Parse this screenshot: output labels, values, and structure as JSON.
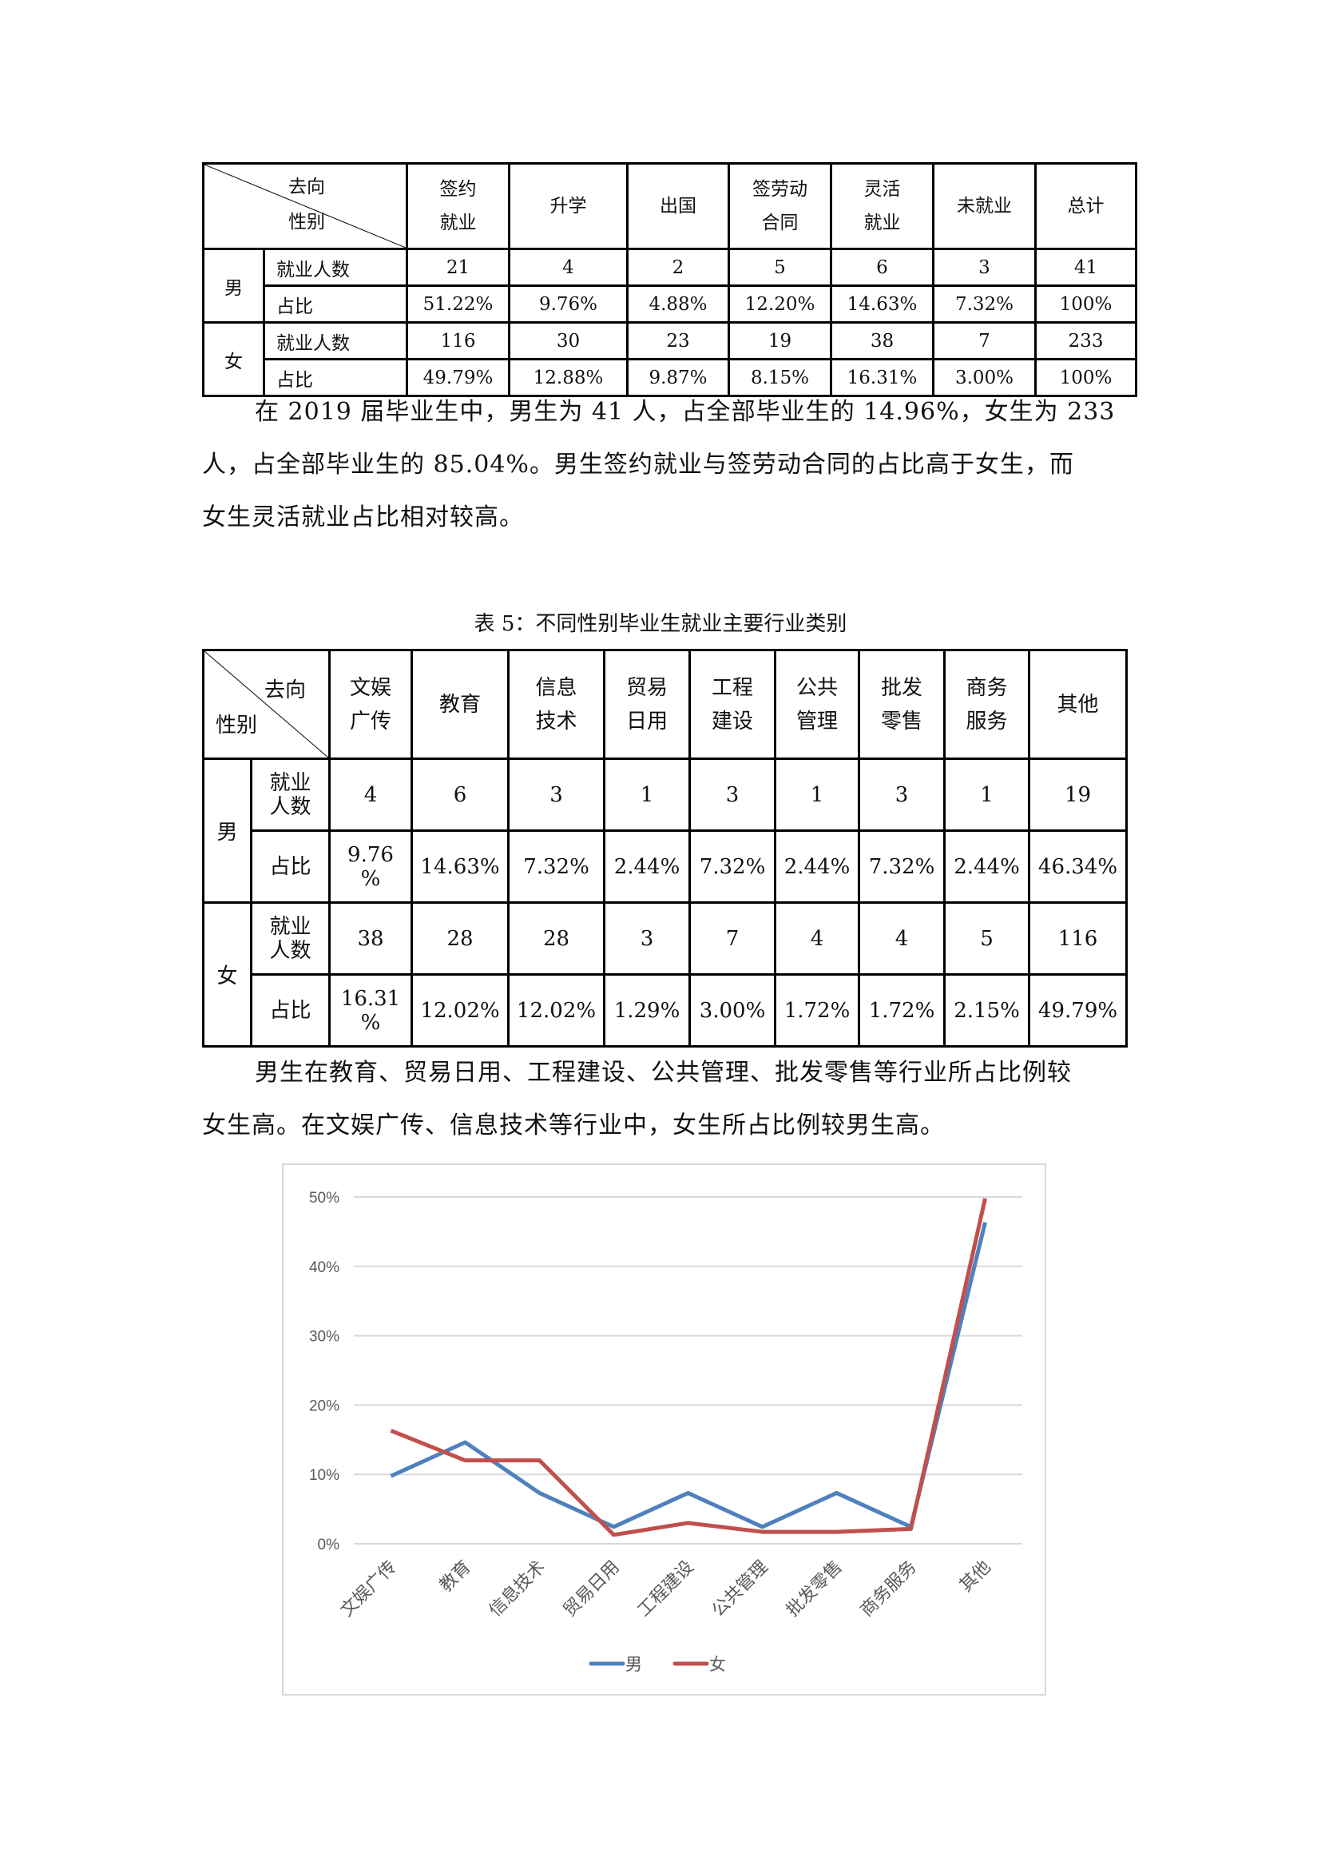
{
  "table1": {
    "corner_top": "去向",
    "corner_bottom": "性别",
    "headers": [
      "签约\n就业",
      "升学",
      "出国",
      "签劳动\n合同",
      "灵活\n就业",
      "未就业",
      "总计"
    ],
    "groups": [
      {
        "gender": "男",
        "rows": [
          {
            "label": "就业人数",
            "values": [
              "21",
              "4",
              "2",
              "5",
              "6",
              "3",
              "41"
            ]
          },
          {
            "label": "占比",
            "values": [
              "51.22%",
              "9.76%",
              "4.88%",
              "12.20%",
              "14.63%",
              "7.32%",
              "100%"
            ]
          }
        ]
      },
      {
        "gender": "女",
        "rows": [
          {
            "label": "就业人数",
            "values": [
              "116",
              "30",
              "23",
              "19",
              "38",
              "7",
              "233"
            ]
          },
          {
            "label": "占比",
            "values": [
              "49.79%",
              "12.88%",
              "9.87%",
              "8.15%",
              "16.31%",
              "3.00%",
              "100%"
            ]
          }
        ]
      }
    ]
  },
  "paragraph1": [
    "在 2019 届毕业生中，男生为 41 人，占全部毕业生的 14.96%，女生为 233",
    "人，占全部毕业生的 85.04%。男生签约就业与签劳动合同的占比高于女生，而",
    "女生灵活就业占比相对较高。"
  ],
  "table2": {
    "caption": "表 5：不同性别毕业生就业主要行业类别",
    "corner_top": "去向",
    "corner_bottom": "性别",
    "headers": [
      "文娱\n广传",
      "教育",
      "信息\n技术",
      "贸易\n日用",
      "工程\n建设",
      "公共\n管理",
      "批发\n零售",
      "商务\n服务",
      "其他"
    ],
    "groups": [
      {
        "gender": "男",
        "rows": [
          {
            "label": "就业\n人数",
            "values": [
              "4",
              "6",
              "3",
              "1",
              "3",
              "1",
              "3",
              "1",
              "19"
            ]
          },
          {
            "label": "占比",
            "values": [
              "9.76\n%",
              "14.63%",
              "7.32%",
              "2.44%",
              "7.32%",
              "2.44%",
              "7.32%",
              "2.44%",
              "46.34%"
            ]
          }
        ]
      },
      {
        "gender": "女",
        "rows": [
          {
            "label": "就业\n人数",
            "values": [
              "38",
              "28",
              "28",
              "3",
              "7",
              "4",
              "4",
              "5",
              "116"
            ]
          },
          {
            "label": "占比",
            "values": [
              "16.31\n%",
              "12.02%",
              "12.02%",
              "1.29%",
              "3.00%",
              "1.72%",
              "1.72%",
              "2.15%",
              "49.79%"
            ]
          }
        ]
      }
    ]
  },
  "paragraph2": [
    "男生在教育、贸易日用、工程建设、公共管理、批发零售等行业所占比例较",
    "女生高。在文娱广传、信息技术等行业中，女生所占比例较男生高。"
  ],
  "chart_data": {
    "type": "line",
    "categories": [
      "文娱广传",
      "教育",
      "信息技术",
      "贸易日用",
      "工程建设",
      "公共管理",
      "批发零售",
      "商务服务",
      "其他"
    ],
    "series": [
      {
        "name": "男",
        "color": "#4f81bd",
        "values": [
          9.76,
          14.63,
          7.32,
          2.44,
          7.32,
          2.44,
          7.32,
          2.44,
          46.34
        ]
      },
      {
        "name": "女",
        "color": "#c0504d",
        "values": [
          16.31,
          12.02,
          12.02,
          1.29,
          3.0,
          1.72,
          1.72,
          2.15,
          49.79
        ]
      }
    ],
    "ylim": [
      0,
      50
    ],
    "yticks": [
      "0%",
      "10%",
      "20%",
      "30%",
      "40%",
      "50%"
    ],
    "grid": true,
    "legend": "bottom"
  }
}
